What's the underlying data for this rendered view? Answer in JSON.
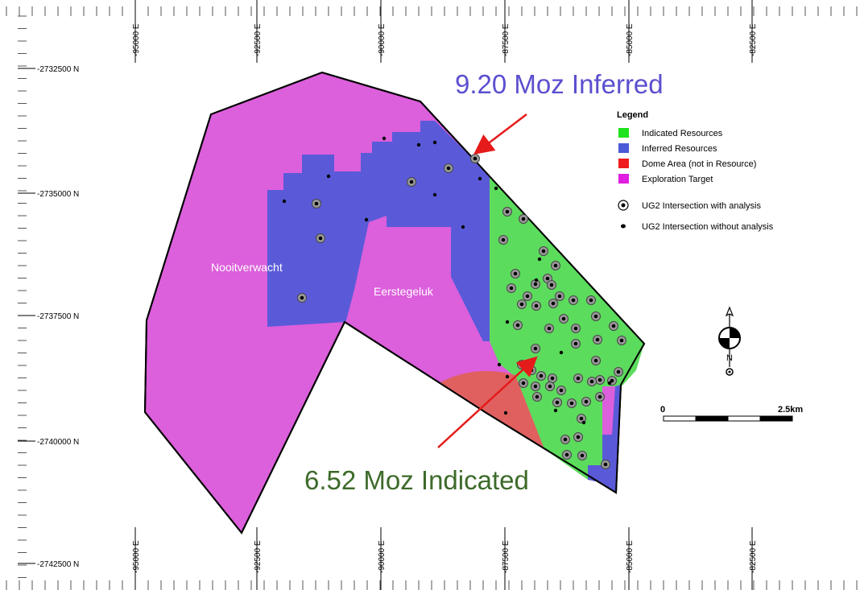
{
  "map": {
    "easting_labels": [
      "-95000 E",
      "-92500 E",
      "-90000 E",
      "-87500 E",
      "-85000 E",
      "-82500 E"
    ],
    "northing_labels": [
      "-2732500 N",
      "-2735000 N",
      "-2737500 N",
      "-2740000 N",
      "-2742500 N"
    ],
    "areas": {
      "nooitverwacht": "Nooitverwacht",
      "eerstegeluk": "Eerstegeluk"
    },
    "callouts": {
      "inferred": {
        "text": "9.20 Moz Inferred",
        "color": "#5b4fcf"
      },
      "indicated": {
        "text": "6.52 Moz Indicated",
        "color": "#3d6b2a"
      }
    },
    "scale_bar": {
      "start": "0",
      "end": "2.5km"
    },
    "north_arrow": {
      "label": "N"
    },
    "colors": {
      "exploration": "#dc5fdc",
      "inferred": "#5a5ad8",
      "indicated": "#5cdc5c",
      "dome": "#e06060",
      "arrow": "#e51a1a"
    }
  },
  "legend": {
    "title": "Legend",
    "items": [
      {
        "label": "Indicated Resources",
        "color": "#1ee31e"
      },
      {
        "label": "Inferred Resources",
        "color": "#4a5ad8"
      },
      {
        "label": "Dome Area (not in Resource)",
        "color": "#ee1c1c"
      },
      {
        "label": "Exploration Target",
        "color": "#e01de0"
      }
    ],
    "symbols": [
      {
        "label": "UG2 Intersection with analysis",
        "symbol": "ringed-dot-icon"
      },
      {
        "label": "UG2 Intersection without analysis",
        "symbol": "dot-icon"
      }
    ]
  }
}
